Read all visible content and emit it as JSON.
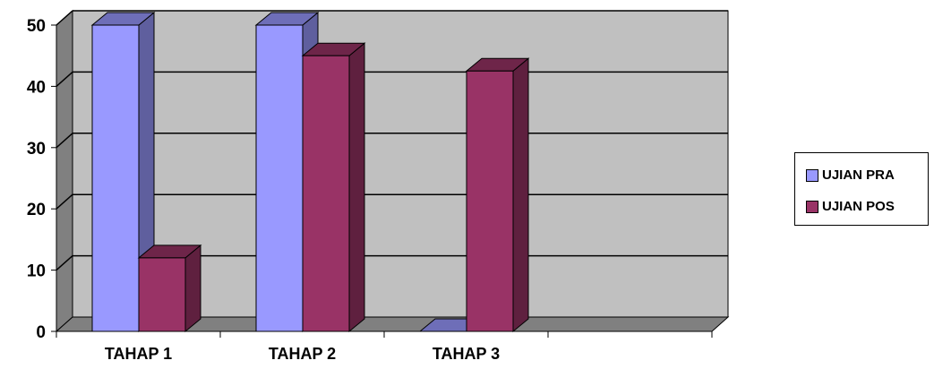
{
  "chart_data": {
    "type": "bar",
    "categories": [
      "TAHAP 1",
      "TAHAP 2",
      "TAHAP 3"
    ],
    "series": [
      {
        "name": "UJIAN PRA",
        "values": [
          50,
          50,
          0
        ],
        "color": "#9999FF"
      },
      {
        "name": "UJIAN POS",
        "values": [
          12,
          45,
          42.5
        ],
        "color": "#993366"
      }
    ],
    "ylim": [
      0,
      50
    ],
    "yticks": [
      0,
      10,
      20,
      30,
      40,
      50
    ],
    "y_tick_labels": [
      "0",
      "10",
      "20",
      "30",
      "40",
      "50"
    ],
    "grid": true,
    "legend": "right",
    "three_d": true,
    "title": "",
    "xlabel": "",
    "ylabel": ""
  }
}
